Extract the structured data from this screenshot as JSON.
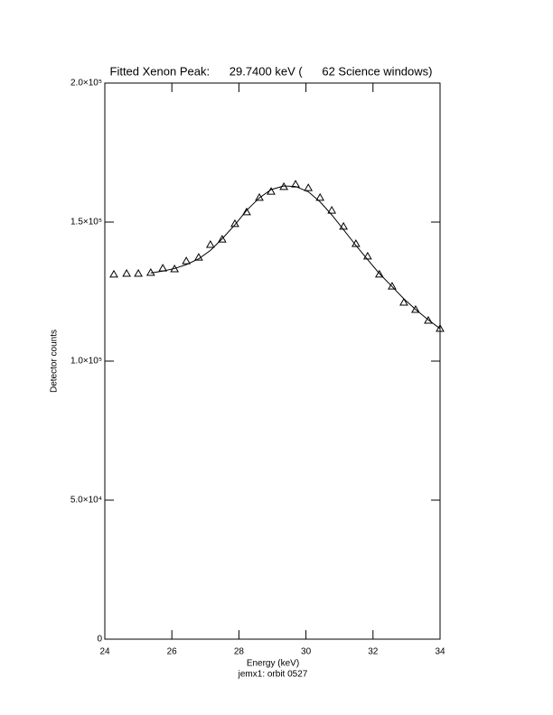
{
  "chart_data": {
    "type": "line",
    "title": "Fitted Xenon Peak:      29.7400 keV (      62 Science windows)",
    "xlabel": "Energy (keV)",
    "ylabel": "Detector counts",
    "subtitle": "jemx1: orbit 0527",
    "x": [
      24.27,
      24.65,
      25.0,
      25.37,
      25.73,
      26.08,
      26.43,
      26.8,
      27.15,
      27.5,
      27.88,
      28.23,
      28.61,
      28.96,
      29.34,
      29.69,
      30.07,
      30.42,
      30.77,
      31.12,
      31.49,
      31.84,
      32.19,
      32.57,
      32.92,
      33.27,
      33.65,
      34.0
    ],
    "series": [
      {
        "marker": "triangle",
        "color": "#000000",
        "values": [
          131200,
          131500,
          131500,
          131800,
          133400,
          133100,
          136000,
          137300,
          141900,
          143800,
          149400,
          153600,
          158800,
          161000,
          162700,
          163600,
          162300,
          158800,
          154200,
          148400,
          142200,
          137700,
          131200,
          126900,
          121100,
          118500,
          114600,
          111700
        ]
      },
      {
        "marker": "none",
        "color": "#000000",
        "values": [
          null,
          null,
          null,
          131700,
          132400,
          133300,
          134700,
          136800,
          139800,
          144000,
          149000,
          154200,
          158700,
          161700,
          163000,
          162800,
          160900,
          157300,
          152600,
          147300,
          141600,
          136500,
          131500,
          126800,
          122400,
          118600,
          114800,
          111700
        ]
      }
    ],
    "xlim": [
      24,
      34
    ],
    "xticks": [
      24,
      26,
      28,
      30,
      32,
      34
    ],
    "ylim": [
      0,
      200000
    ],
    "yticks": [
      0,
      {
        "value": 50000,
        "label": "5.0×10⁴"
      },
      {
        "value": 100000,
        "label": "1.0×10⁵"
      },
      {
        "value": 150000,
        "label": "1.5×10⁵"
      },
      {
        "value": 200000,
        "label": "2.0×10⁵"
      }
    ]
  }
}
